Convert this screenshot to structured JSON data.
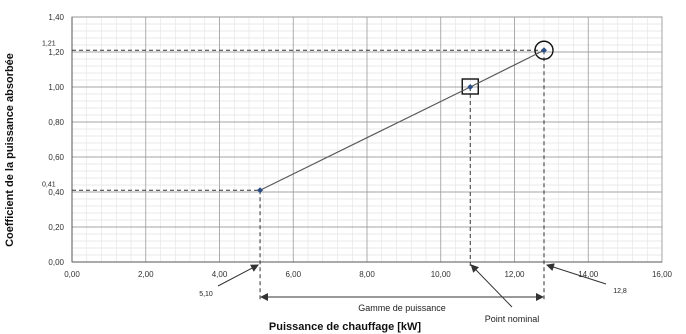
{
  "chart_data": {
    "type": "line",
    "title": "",
    "xlabel": "Puissance de chauffage [kW]",
    "ylabel": "Coefficient de la puissance absorbée",
    "xlim": [
      0,
      16
    ],
    "ylim": [
      0,
      1.4
    ],
    "x_ticks": [
      "0,00",
      "2,00",
      "4,00",
      "6,00",
      "8,00",
      "10,00",
      "12,00",
      "14,00",
      "16,00"
    ],
    "y_ticks": [
      "0,00",
      "0,20",
      "0,40",
      "0,60",
      "0,80",
      "1,00",
      "1,20",
      "1,40"
    ],
    "x_tick_values": [
      0,
      2,
      4,
      6,
      8,
      10,
      12,
      14,
      16
    ],
    "y_tick_values": [
      0,
      0.2,
      0.4,
      0.6,
      0.8,
      1.0,
      1.2,
      1.4
    ],
    "grid": true,
    "series": [
      {
        "x": [
          5.1,
          10.8,
          12.8
        ],
        "y": [
          0.41,
          1.0,
          1.21
        ],
        "color": "#5a5a5a",
        "marker_color": "#2e4f86"
      }
    ],
    "annotations": {
      "min_x_label": "5,10",
      "max_x_label": "12,8",
      "min_y_label": "0,41",
      "max_y_label": "1,21",
      "range_label": "Gamme de puissance",
      "nominal_label": "Point nominal"
    }
  }
}
